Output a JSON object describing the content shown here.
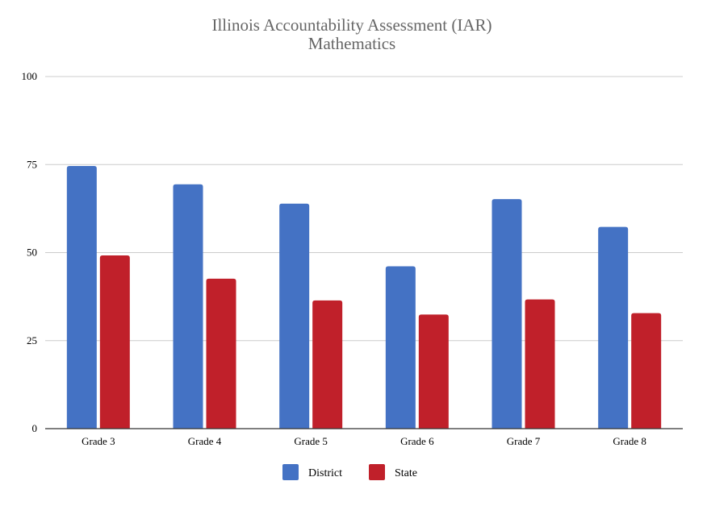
{
  "chart_data": {
    "type": "bar",
    "title": [
      "Illinois Accountability Assessment (IAR)",
      "Mathematics"
    ],
    "categories": [
      "Grade 3",
      "Grade 4",
      "Grade 5",
      "Grade 6",
      "Grade 7",
      "Grade 8"
    ],
    "series": [
      {
        "name": "District",
        "color": "#4472c4",
        "values": [
          74.6,
          69.4,
          63.9,
          46.1,
          65.2,
          57.3
        ]
      },
      {
        "name": "State",
        "color": "#c0202a",
        "values": [
          49.2,
          42.6,
          36.4,
          32.4,
          36.7,
          32.8
        ]
      }
    ],
    "ylim": [
      0,
      100
    ],
    "yticks": [
      0,
      25,
      50,
      75,
      100
    ],
    "grid": true,
    "legend": "bottom",
    "xlabel": "",
    "ylabel": ""
  }
}
